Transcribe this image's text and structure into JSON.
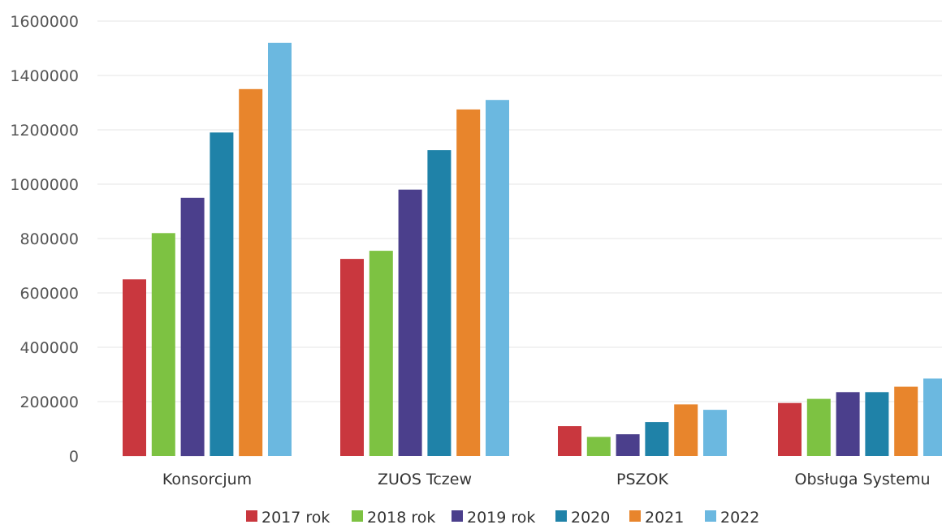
{
  "chart_data": {
    "type": "bar",
    "categories": [
      "Konsorcjum",
      "ZUOS Tczew",
      "PSZOK",
      "Obsługa Systemu"
    ],
    "series": [
      {
        "name": "2017 rok",
        "color": "#c9373e",
        "values": [
          650000,
          725000,
          110000,
          195000
        ]
      },
      {
        "name": "2018 rok",
        "color": "#7dc242",
        "values": [
          820000,
          755000,
          70000,
          210000
        ]
      },
      {
        "name": "2019 rok",
        "color": "#4b3f8c",
        "values": [
          950000,
          980000,
          80000,
          235000
        ]
      },
      {
        "name": "2020",
        "color": "#1f82a8",
        "values": [
          1190000,
          1125000,
          125000,
          235000
        ]
      },
      {
        "name": "2021",
        "color": "#e8852c",
        "values": [
          1350000,
          1275000,
          190000,
          255000
        ]
      },
      {
        "name": "2022",
        "color": "#6bb8e0",
        "values": [
          1520000,
          1310000,
          170000,
          285000
        ]
      }
    ],
    "y_ticks": [
      "0",
      "200000",
      "400000",
      "600000",
      "800000",
      "1000000",
      "1200000",
      "1400000",
      "1600000"
    ],
    "ylim": [
      0,
      1600000
    ],
    "grid": true,
    "legend_position": "bottom",
    "title": "",
    "xlabel": "",
    "ylabel": ""
  }
}
